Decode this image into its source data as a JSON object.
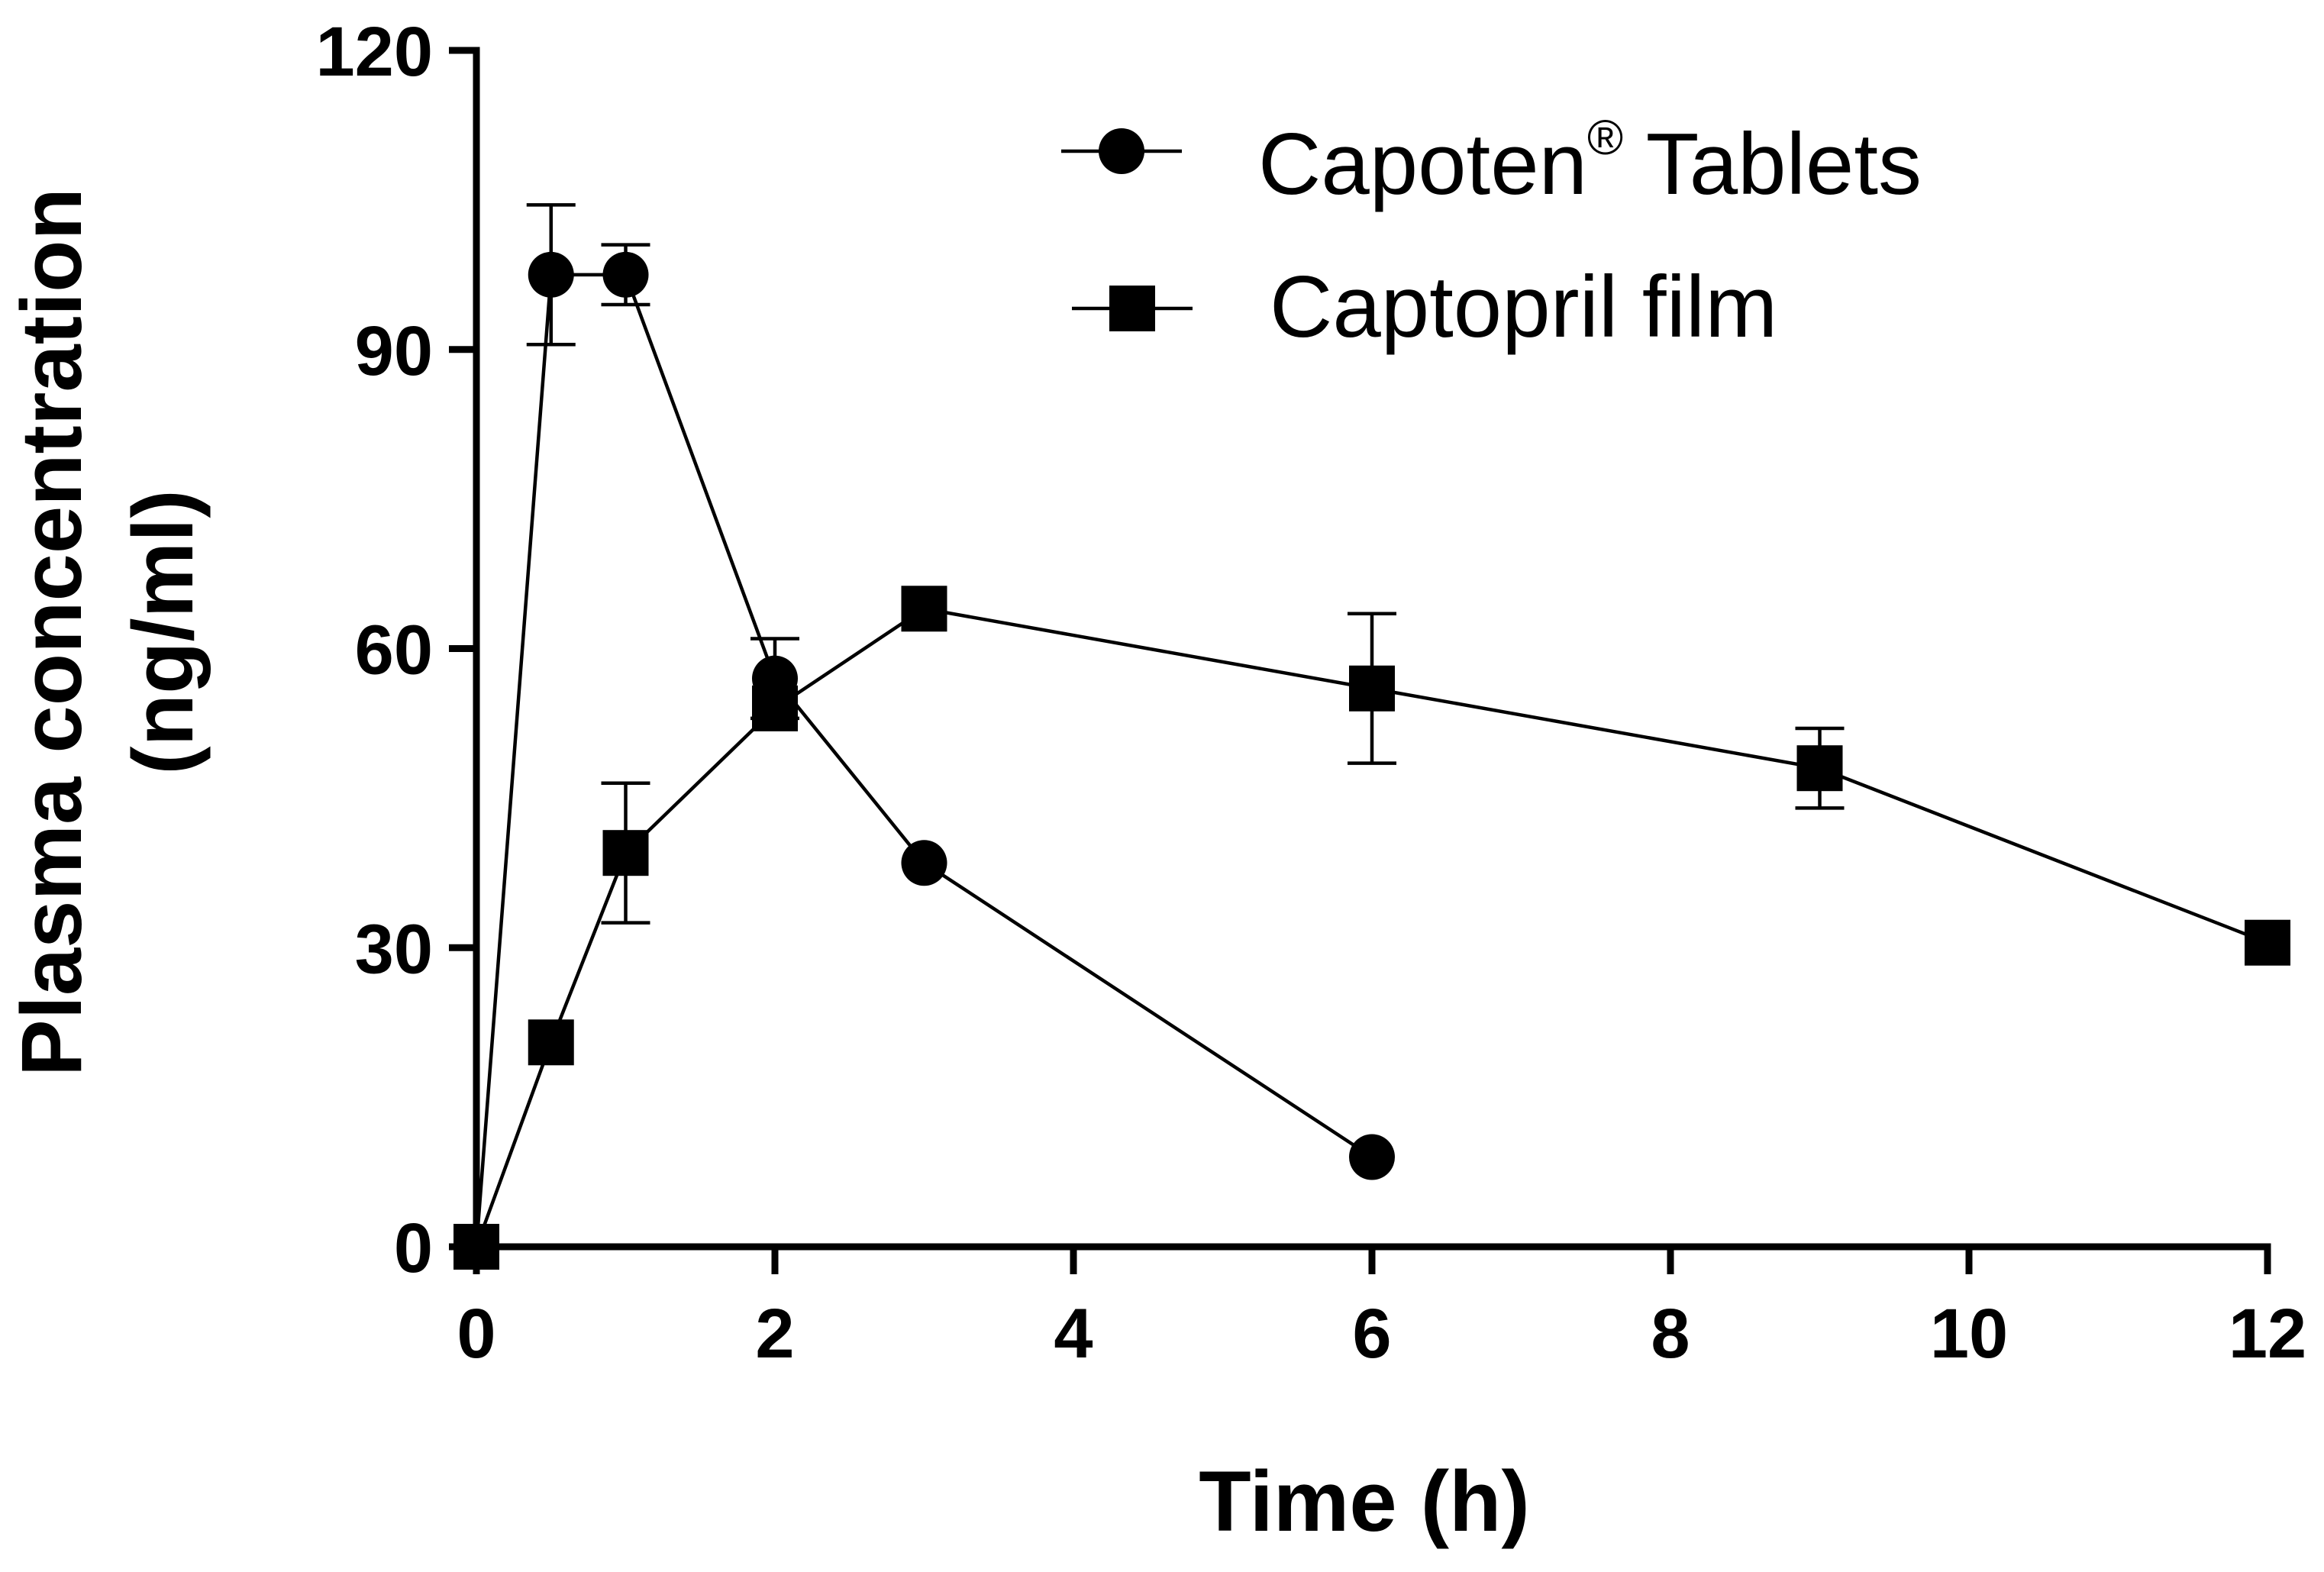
{
  "chart_data": {
    "type": "line",
    "xlabel": "Time (h)",
    "ylabel_line1": "Plasma concentration",
    "ylabel_line2": "(ng/ml)",
    "xlim": [
      0,
      12
    ],
    "ylim": [
      0,
      120
    ],
    "x_ticks": [
      "0",
      "2",
      "4",
      "6",
      "8",
      "10",
      "12"
    ],
    "y_ticks": [
      "0",
      "30",
      "60",
      "90",
      "120"
    ],
    "grid": false,
    "legend_position": "top-right",
    "series": [
      {
        "name": "Capoten",
        "name_superscript": "®",
        "name_suffix": " Tablets",
        "marker": "circle",
        "x": [
          0,
          0.5,
          1,
          2,
          3,
          6
        ],
        "y": [
          0,
          97.5,
          97.5,
          57,
          38.5,
          9
        ],
        "err": [
          0,
          7,
          3,
          4,
          0,
          0
        ]
      },
      {
        "name": "Captopril film",
        "marker": "square",
        "x": [
          0,
          0.5,
          1,
          2,
          3,
          6,
          9,
          12
        ],
        "y": [
          0,
          20.5,
          39.5,
          54,
          64,
          56,
          48,
          30.5
        ],
        "err": [
          0,
          0,
          7,
          0,
          0,
          7.5,
          4,
          0
        ]
      }
    ]
  }
}
